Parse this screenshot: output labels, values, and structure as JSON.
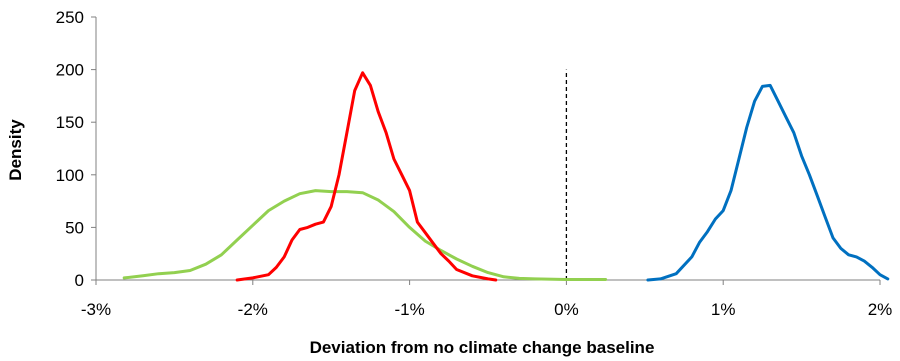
{
  "chart_data": {
    "type": "line",
    "title": "",
    "xlabel": "Deviation from no climate change baseline",
    "ylabel": "Density",
    "xlim": [
      -3,
      2
    ],
    "ylim": [
      0,
      250
    ],
    "x_ticks": [
      -3,
      -2,
      -1,
      0,
      1,
      2
    ],
    "x_tick_labels": [
      "-3%",
      "-2%",
      "-1%",
      "0%",
      "1%",
      "2%"
    ],
    "y_ticks": [
      0,
      50,
      100,
      150,
      200,
      250
    ],
    "y_tick_labels": [
      "0",
      "50",
      "100",
      "150",
      "200",
      "250"
    ],
    "grid": false,
    "legend": "none",
    "reference_line": {
      "x": 0,
      "y_from": 0,
      "y_to": 200,
      "style": "dashed",
      "color": "#000000"
    },
    "series": [
      {
        "color": "#92d050",
        "points": [
          [
            -2.82,
            2
          ],
          [
            -2.7,
            4
          ],
          [
            -2.6,
            6
          ],
          [
            -2.5,
            7
          ],
          [
            -2.4,
            9
          ],
          [
            -2.3,
            15
          ],
          [
            -2.2,
            24
          ],
          [
            -2.1,
            38
          ],
          [
            -2.0,
            52
          ],
          [
            -1.9,
            66
          ],
          [
            -1.8,
            75
          ],
          [
            -1.7,
            82
          ],
          [
            -1.6,
            85
          ],
          [
            -1.5,
            84
          ],
          [
            -1.4,
            84
          ],
          [
            -1.3,
            83
          ],
          [
            -1.2,
            76
          ],
          [
            -1.1,
            65
          ],
          [
            -1.0,
            50
          ],
          [
            -0.9,
            37
          ],
          [
            -0.8,
            28
          ],
          [
            -0.7,
            20
          ],
          [
            -0.6,
            13
          ],
          [
            -0.5,
            7
          ],
          [
            -0.4,
            3
          ],
          [
            -0.3,
            1.5
          ],
          [
            -0.2,
            1
          ],
          [
            0.0,
            0.5
          ],
          [
            0.25,
            0.5
          ]
        ]
      },
      {
        "color": "#ff0000",
        "points": [
          [
            -2.1,
            0
          ],
          [
            -2.0,
            2
          ],
          [
            -1.9,
            5
          ],
          [
            -1.85,
            12
          ],
          [
            -1.8,
            22
          ],
          [
            -1.75,
            38
          ],
          [
            -1.7,
            48
          ],
          [
            -1.65,
            50
          ],
          [
            -1.6,
            53
          ],
          [
            -1.55,
            55
          ],
          [
            -1.5,
            70
          ],
          [
            -1.45,
            100
          ],
          [
            -1.4,
            140
          ],
          [
            -1.35,
            180
          ],
          [
            -1.3,
            197
          ],
          [
            -1.25,
            185
          ],
          [
            -1.2,
            160
          ],
          [
            -1.15,
            140
          ],
          [
            -1.1,
            115
          ],
          [
            -1.05,
            100
          ],
          [
            -1.0,
            85
          ],
          [
            -0.95,
            55
          ],
          [
            -0.9,
            45
          ],
          [
            -0.85,
            35
          ],
          [
            -0.8,
            25
          ],
          [
            -0.75,
            18
          ],
          [
            -0.7,
            10
          ],
          [
            -0.6,
            4
          ],
          [
            -0.5,
            1
          ],
          [
            -0.45,
            0
          ]
        ]
      },
      {
        "color": "#0070c0",
        "points": [
          [
            0.52,
            0
          ],
          [
            0.6,
            1
          ],
          [
            0.7,
            6
          ],
          [
            0.8,
            22
          ],
          [
            0.85,
            36
          ],
          [
            0.9,
            46
          ],
          [
            0.95,
            58
          ],
          [
            1.0,
            66
          ],
          [
            1.05,
            85
          ],
          [
            1.1,
            115
          ],
          [
            1.15,
            145
          ],
          [
            1.2,
            170
          ],
          [
            1.25,
            184
          ],
          [
            1.3,
            185
          ],
          [
            1.35,
            170
          ],
          [
            1.4,
            155
          ],
          [
            1.45,
            140
          ],
          [
            1.5,
            118
          ],
          [
            1.55,
            100
          ],
          [
            1.6,
            80
          ],
          [
            1.65,
            60
          ],
          [
            1.7,
            40
          ],
          [
            1.75,
            30
          ],
          [
            1.8,
            24
          ],
          [
            1.85,
            22
          ],
          [
            1.9,
            18
          ],
          [
            1.95,
            12
          ],
          [
            2.0,
            5
          ],
          [
            2.05,
            1
          ]
        ]
      }
    ]
  }
}
